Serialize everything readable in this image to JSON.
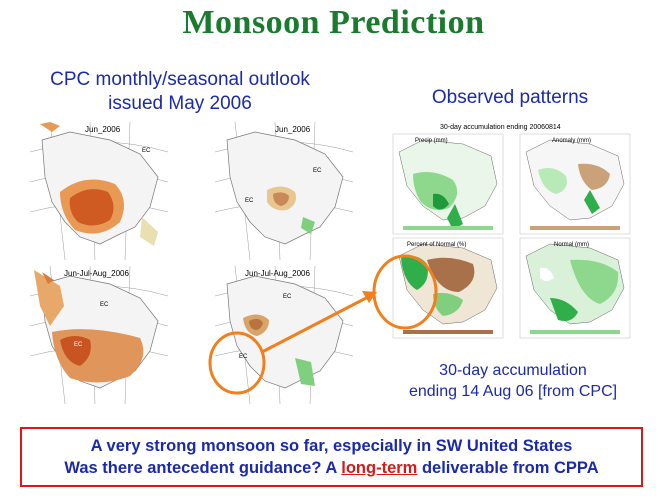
{
  "slide": {
    "title": "Monsoon Prediction",
    "left_heading_line1": "CPC monthly/seasonal outlook",
    "left_heading_line2": "issued May 2006",
    "right_heading": "Observed patterns",
    "outlook_maps": [
      {
        "label": "Jun_2006"
      },
      {
        "label": "Jun_2006"
      },
      {
        "label": "Jun-Jul-Aug_2006"
      },
      {
        "label": "Jun-Jul-Aug_2006"
      }
    ],
    "observed_figure_title": "30-day accumulation ending 20060814",
    "observed_panels": [
      {
        "label": "Precip (mm)"
      },
      {
        "label": "Anomaly (mm)"
      },
      {
        "label": "Percent of Normal (%)"
      },
      {
        "label": "Normal (mm)"
      }
    ],
    "caption_line1": "30-day accumulation",
    "caption_line2": "ending 14 Aug 06  [from CPC]",
    "footer_line1": "A very strong monsoon so far, especially in SW United States",
    "footer_line2_prefix": "Was there antecedent guidance? A ",
    "footer_line2_highlight": "long-term",
    "footer_line2_suffix": " deliverable from CPPA"
  },
  "colors": {
    "title": "#1a7a2e",
    "heading": "#1a2aa8",
    "accent": "#d61a1a",
    "callout": "#f07f1e"
  }
}
